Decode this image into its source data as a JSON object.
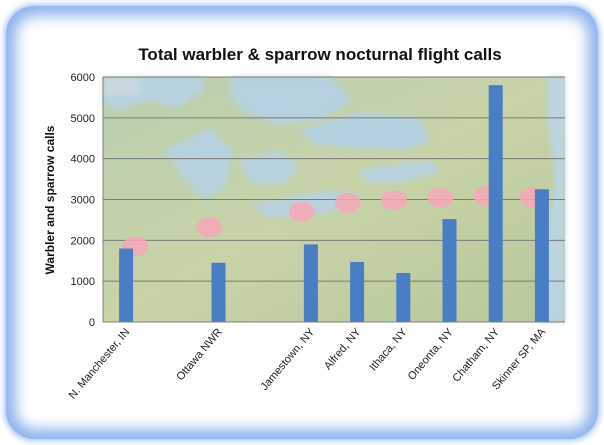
{
  "chart_data": {
    "type": "bar",
    "title": "Total warbler & sparrow nocturnal flight calls",
    "xlabel": "",
    "ylabel": "Warbler and sparrow calls",
    "ylim": [
      0,
      6000
    ],
    "yticks": [
      0,
      1000,
      2000,
      3000,
      4000,
      5000,
      6000
    ],
    "grid": true,
    "categories": [
      "N. Manchester, IN",
      "Ottawa NWR",
      "Jamestown, NY",
      "Alfred, NY",
      "Ithaca, NY",
      "Oneonta, NY",
      "Chatham, NY",
      "Skinner SP, MA"
    ],
    "x_positions": [
      0,
      2,
      4,
      5,
      6,
      7,
      8,
      9
    ],
    "x_range": [
      -0.5,
      9.5
    ],
    "values": [
      1800,
      1450,
      1900,
      1470,
      1200,
      2520,
      5800,
      3250
    ],
    "bar_color": "#4a7ec4",
    "background": "map of the Great Lakes region with pink dots marking recording sites",
    "site_marker_color": "#f7a8b8"
  }
}
